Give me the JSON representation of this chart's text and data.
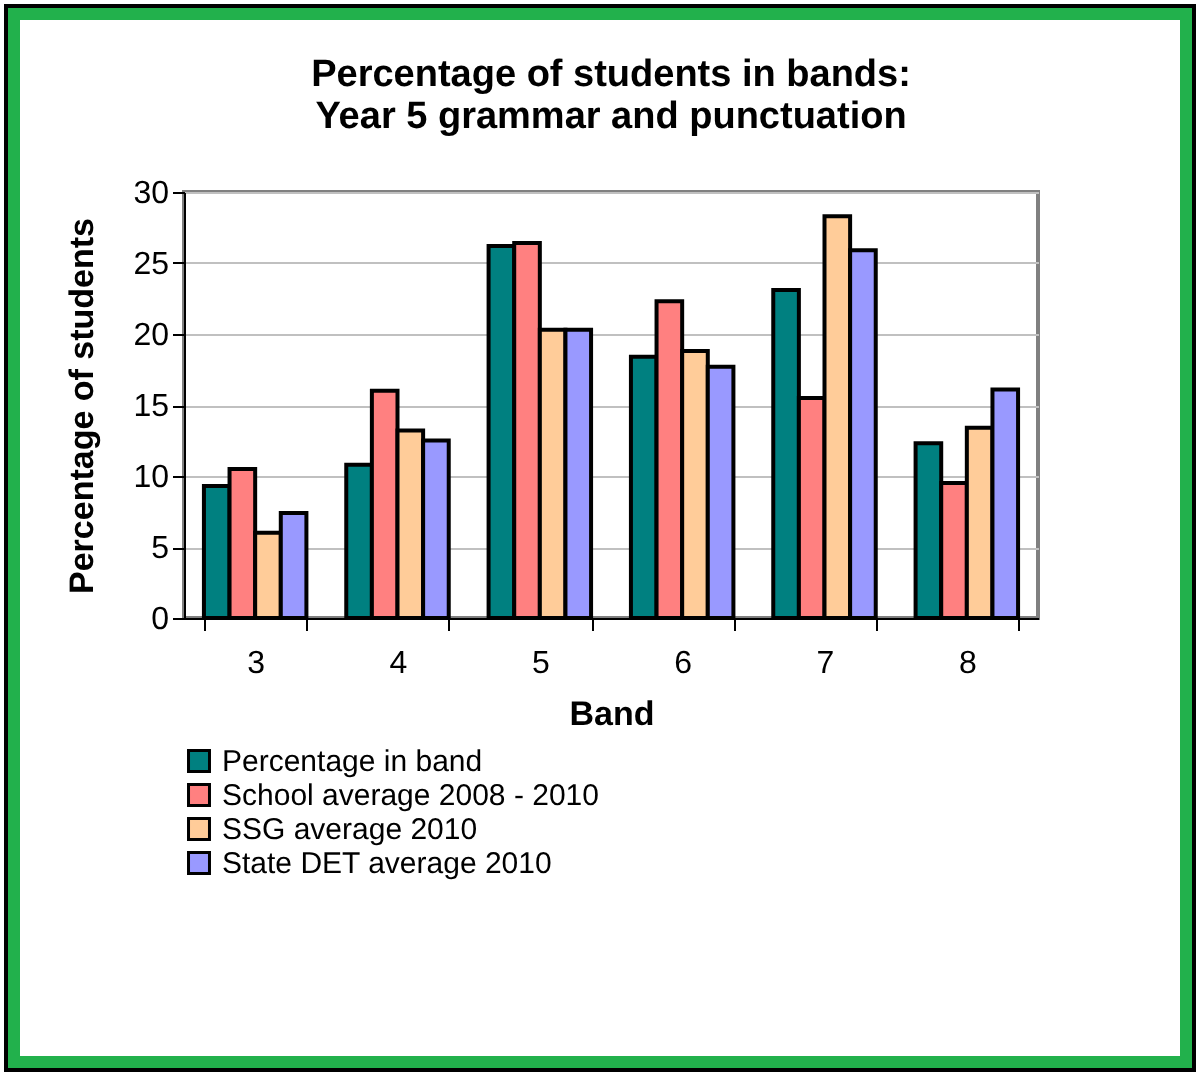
{
  "chart_data": {
    "type": "bar",
    "title": "Percentage of students in bands:\nYear 5 grammar and punctuation",
    "xlabel": "Band",
    "ylabel": "Percentage of students",
    "categories": [
      "3",
      "4",
      "5",
      "6",
      "7",
      "8"
    ],
    "series": [
      {
        "name": "Percentage in band",
        "color": "#008080",
        "values": [
          9.3,
          10.8,
          26.2,
          18.4,
          23.1,
          12.3
        ]
      },
      {
        "name": "School average 2008 - 2010",
        "color": "#ff8080",
        "values": [
          10.5,
          16,
          26.4,
          22.3,
          15.5,
          9.5
        ]
      },
      {
        "name": "SSG average 2010",
        "color": "#ffcc99",
        "values": [
          6,
          13.2,
          20.3,
          18.8,
          28.3,
          13.4
        ]
      },
      {
        "name": "State DET average 2010",
        "color": "#9999ff",
        "values": [
          7.4,
          12.5,
          20.3,
          17.7,
          25.9,
          16.1
        ]
      }
    ],
    "ylim": [
      0,
      30
    ],
    "yticks": [
      0,
      5,
      10,
      15,
      20,
      25,
      30
    ],
    "grid": "y",
    "legend": "bottom"
  }
}
